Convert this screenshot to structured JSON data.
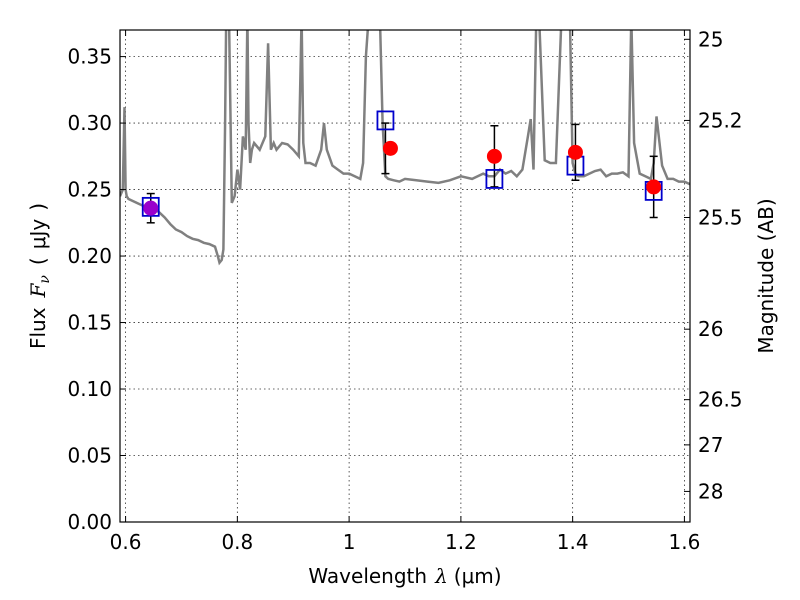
{
  "chart_data": {
    "type": "scatter",
    "xlabel": {
      "text": "Wavelength",
      "symbol": "λ",
      "unit": "(μm)"
    },
    "ylabel": {
      "text": "Flux",
      "symbol": "F",
      "subscript": "ν",
      "open": "(",
      "unit": "μJy",
      "close": ")"
    },
    "y2label": "Magnitude (AB)",
    "xlim": [
      0.59,
      1.61
    ],
    "ylim": [
      0.0,
      0.37
    ],
    "x_ticks": [
      0.6,
      0.8,
      1.0,
      1.2,
      1.4,
      1.6
    ],
    "x_tick_labels": [
      "0.6",
      "0.8",
      "1",
      "1.2",
      "1.4",
      "1.6"
    ],
    "y_ticks": [
      0.0,
      0.05,
      0.1,
      0.15,
      0.2,
      0.25,
      0.3,
      0.35
    ],
    "y_tick_labels": [
      "0.00",
      "0.05",
      "0.10",
      "0.15",
      "0.20",
      "0.25",
      "0.30",
      "0.35"
    ],
    "y2_ticks": [
      {
        "label": "25",
        "flux": 0.363
      },
      {
        "label": "25.2",
        "flux": 0.302
      },
      {
        "label": "25.5",
        "flux": 0.229
      },
      {
        "label": "26",
        "flux": 0.145
      },
      {
        "label": "26.5",
        "flux": 0.092
      },
      {
        "label": "27",
        "flux": 0.058
      },
      {
        "label": "28",
        "flux": 0.023
      }
    ],
    "grid": true,
    "colors": {
      "sed": "#808080",
      "observed": "#ff0000",
      "model": "#0000cc",
      "errorbar": "#000000",
      "overlap": "#9900cc"
    },
    "sed_model": {
      "x": [
        0.59,
        0.595,
        0.598,
        0.6,
        0.602,
        0.605,
        0.61,
        0.62,
        0.63,
        0.64,
        0.65,
        0.66,
        0.67,
        0.68,
        0.69,
        0.7,
        0.71,
        0.72,
        0.73,
        0.74,
        0.75,
        0.76,
        0.765,
        0.768,
        0.772,
        0.775,
        0.778,
        0.78,
        0.785,
        0.79,
        0.795,
        0.8,
        0.805,
        0.81,
        0.815,
        0.818,
        0.82,
        0.823,
        0.826,
        0.83,
        0.84,
        0.85,
        0.855,
        0.86,
        0.865,
        0.87,
        0.88,
        0.89,
        0.9,
        0.91,
        0.915,
        0.918,
        0.922,
        0.93,
        0.94,
        0.95,
        0.955,
        0.96,
        0.97,
        0.98,
        0.99,
        1.0,
        1.01,
        1.02,
        1.025,
        1.03,
        1.035,
        1.04,
        1.05,
        1.055,
        1.06,
        1.065,
        1.07,
        1.08,
        1.09,
        1.1,
        1.12,
        1.14,
        1.16,
        1.18,
        1.2,
        1.22,
        1.24,
        1.25,
        1.26,
        1.27,
        1.28,
        1.29,
        1.3,
        1.31,
        1.32,
        1.325,
        1.33,
        1.335,
        1.34,
        1.35,
        1.36,
        1.37,
        1.38,
        1.39,
        1.395,
        1.4,
        1.405,
        1.41,
        1.42,
        1.43,
        1.44,
        1.45,
        1.46,
        1.47,
        1.48,
        1.49,
        1.5,
        1.505,
        1.51,
        1.52,
        1.53,
        1.54,
        1.545,
        1.55,
        1.56,
        1.57,
        1.58,
        1.59,
        1.6,
        1.61
      ],
      "y": [
        0.245,
        0.25,
        0.312,
        0.25,
        0.245,
        0.243,
        0.242,
        0.24,
        0.238,
        0.237,
        0.236,
        0.233,
        0.229,
        0.224,
        0.22,
        0.218,
        0.215,
        0.213,
        0.212,
        0.21,
        0.209,
        0.207,
        0.2,
        0.195,
        0.197,
        0.205,
        0.3,
        0.38,
        0.38,
        0.24,
        0.245,
        0.265,
        0.25,
        0.29,
        0.28,
        0.38,
        0.3,
        0.27,
        0.28,
        0.285,
        0.28,
        0.29,
        0.36,
        0.28,
        0.285,
        0.28,
        0.285,
        0.284,
        0.28,
        0.275,
        0.38,
        0.285,
        0.27,
        0.27,
        0.268,
        0.28,
        0.3,
        0.28,
        0.268,
        0.265,
        0.262,
        0.262,
        0.26,
        0.258,
        0.27,
        0.35,
        0.38,
        0.38,
        0.38,
        0.38,
        0.3,
        0.26,
        0.258,
        0.257,
        0.256,
        0.258,
        0.257,
        0.256,
        0.255,
        0.257,
        0.26,
        0.258,
        0.262,
        0.26,
        0.26,
        0.265,
        0.262,
        0.264,
        0.26,
        0.265,
        0.29,
        0.303,
        0.265,
        0.38,
        0.38,
        0.272,
        0.27,
        0.27,
        0.38,
        0.38,
        0.38,
        0.27,
        0.262,
        0.26,
        0.26,
        0.262,
        0.264,
        0.265,
        0.26,
        0.262,
        0.262,
        0.263,
        0.26,
        0.38,
        0.285,
        0.262,
        0.26,
        0.258,
        0.27,
        0.305,
        0.268,
        0.258,
        0.258,
        0.256,
        0.256,
        0.254
      ]
    },
    "observed": {
      "x": [
        0.645,
        1.065,
        1.26,
        1.405,
        1.545
      ],
      "y": [
        0.236,
        0.281,
        0.275,
        0.278,
        0.252
      ],
      "yerr": [
        0.011,
        0.019,
        0.023,
        0.021,
        0.023
      ]
    },
    "model_photometry": {
      "x": [
        0.645,
        1.065,
        1.26,
        1.405,
        1.545
      ],
      "y": [
        0.237,
        0.302,
        0.258,
        0.268,
        0.249
      ]
    }
  }
}
